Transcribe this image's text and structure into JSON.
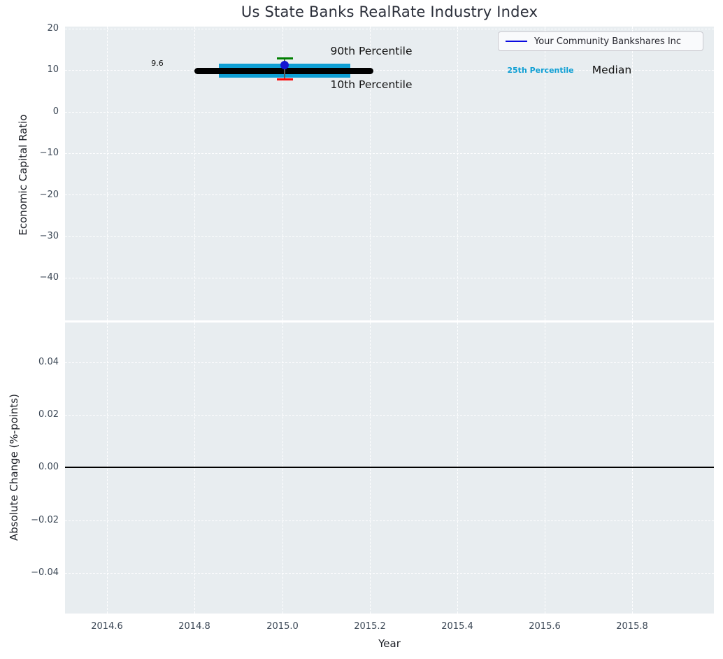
{
  "title": "Us State Banks RealRate Industry Index",
  "top_plot": {
    "ylabel": "Economic Capital Ratio",
    "ytick_labels": [
      "20",
      "10",
      "0",
      "−10",
      "−20",
      "−30",
      "−40"
    ],
    "legend_label": "Your Community Bankshares Inc",
    "annotations": {
      "median_value": "9.6",
      "p90_label": "90th Percentile",
      "p10_label": "10th Percentile",
      "p25_label": "25th Percentile",
      "median_label": "Median"
    }
  },
  "bottom_plot": {
    "ylabel": "Absolute Change (%-points)",
    "xlabel": "Year",
    "ytick_labels": [
      "0.04",
      "0.02",
      "0.00",
      "−0.02",
      "−0.04"
    ],
    "xtick_labels": [
      "2014.6",
      "2014.8",
      "2015.0",
      "2015.2",
      "2015.4",
      "2015.6",
      "2015.8"
    ]
  },
  "colors": {
    "axes_background": "#e8edf0",
    "grid": "#ffffff",
    "percentile_band": "#0f9fd4",
    "median_line": "#000000",
    "p90_cap": "#007f00",
    "p10_cap": "#ff0000",
    "company_point": "#1414d2",
    "legend_line": "#0a0ae0",
    "tick_text": "#3c4856",
    "p25_text": "#0f9fd4"
  },
  "chart_data": [
    {
      "type": "scatter",
      "title": "Us State Banks RealRate Industry Index",
      "ylabel": "Economic Capital Ratio",
      "ylim": [
        -50,
        20
      ],
      "yticks": [
        20,
        10,
        0,
        -10,
        -20,
        -30,
        -40
      ],
      "xlim": [
        2014.5,
        2016.0
      ],
      "xticks": [
        2014.6,
        2014.8,
        2015.0,
        2015.2,
        2015.4,
        2015.6,
        2015.8
      ],
      "grid": true,
      "legend": [
        "Your Community Bankshares Inc"
      ],
      "legend_position": "upper right",
      "series": [
        {
          "name": "Industry Median",
          "style": "thick_black_line",
          "x_span": [
            2014.8,
            2015.2
          ],
          "y": 9.6,
          "data_label": "9.6"
        },
        {
          "name": "25th-75th Percentile Band",
          "style": "cyan_band",
          "x_span": [
            2014.85,
            2015.15
          ],
          "y_range": [
            8.2,
            11.4
          ]
        },
        {
          "name": "90th Percentile",
          "style": "green_errorbar_cap",
          "x": 2015.0,
          "y": 12.7
        },
        {
          "name": "10th Percentile",
          "style": "red_errorbar_cap",
          "x": 2015.0,
          "y": 7.7
        },
        {
          "name": "Your Community Bankshares Inc",
          "style": "blue_point",
          "x": 2015.0,
          "y": 11.1
        }
      ],
      "annotations": [
        "9.6",
        "90th Percentile",
        "10th Percentile",
        "25th Percentile",
        "Median"
      ]
    },
    {
      "type": "line",
      "ylabel": "Absolute Change (%-points)",
      "xlabel": "Year",
      "ylim": [
        -0.055,
        0.055
      ],
      "yticks": [
        0.04,
        0.02,
        0.0,
        -0.02,
        -0.04
      ],
      "xticks": [
        2014.6,
        2014.8,
        2015.0,
        2015.2,
        2015.4,
        2015.6,
        2015.8
      ],
      "grid": true,
      "series": [
        {
          "name": "Zero Reference Line",
          "style": "black_hline",
          "y": 0.0
        }
      ]
    }
  ]
}
